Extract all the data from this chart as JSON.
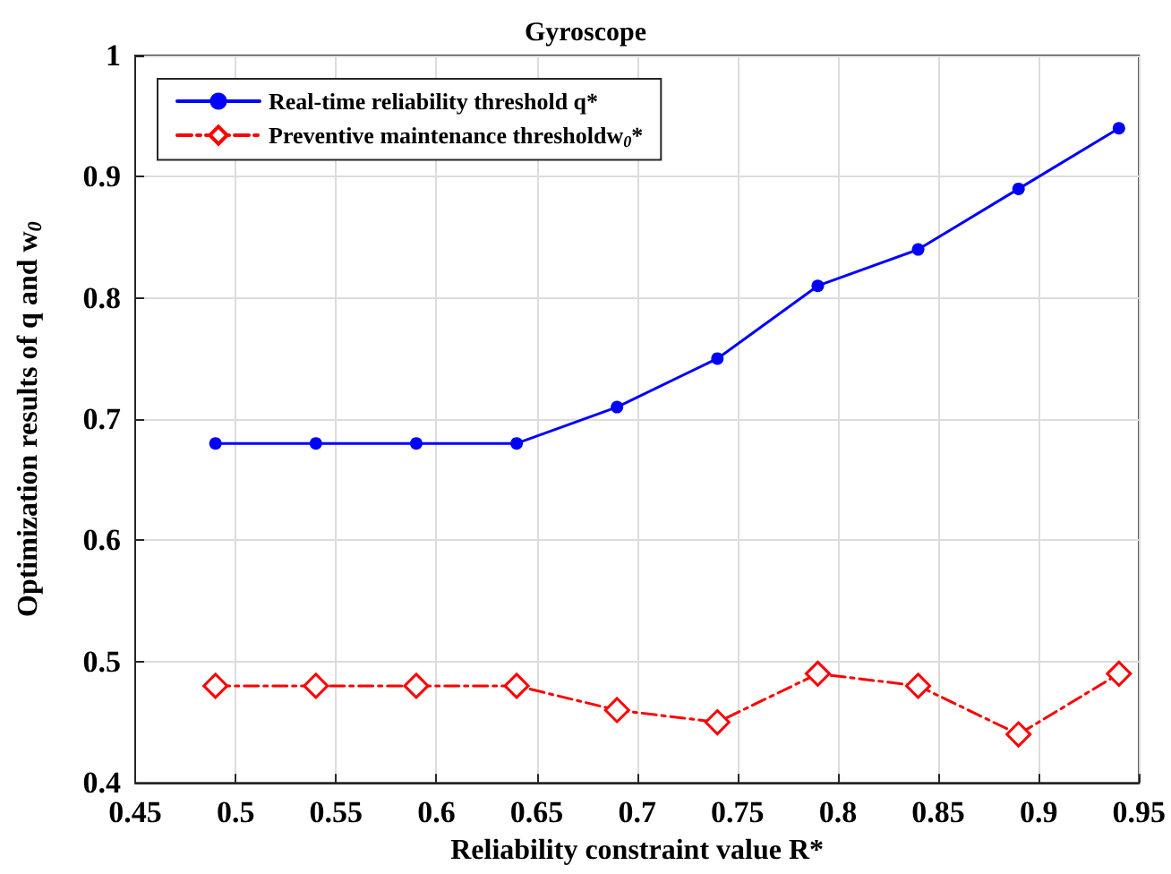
{
  "chart_data": {
    "type": "line",
    "title": "Gyroscope",
    "xlabel": "Reliability constraint value R*",
    "ylabel": "Optimization results of q and w$_{0}$",
    "x": [
      0.49,
      0.54,
      0.59,
      0.64,
      0.69,
      0.74,
      0.79,
      0.84,
      0.89,
      0.94
    ],
    "series": [
      {
        "name": "Real-time reliability threshold q*",
        "color": "#0000ff",
        "marker": "circle",
        "line_style": "solid",
        "values": [
          0.68,
          0.68,
          0.68,
          0.68,
          0.71,
          0.75,
          0.81,
          0.84,
          0.89,
          0.94
        ]
      },
      {
        "name": "Preventive maintenance thresholdw$_{0}$*",
        "color": "#ff0000",
        "marker": "diamond",
        "line_style": "dashed",
        "values": [
          0.48,
          0.48,
          0.48,
          0.48,
          0.46,
          0.45,
          0.49,
          0.48,
          0.44,
          0.49
        ]
      }
    ],
    "xlim": [
      0.45,
      0.95
    ],
    "xticks": [
      0.45,
      0.5,
      0.55,
      0.6,
      0.65,
      0.7,
      0.75,
      0.8,
      0.85,
      0.9,
      0.95
    ],
    "ylim": [
      0.4,
      1
    ],
    "yticks": [
      0.4,
      0.5,
      0.6,
      0.7,
      0.8,
      0.9,
      1
    ],
    "grid": true,
    "legend": "top left"
  }
}
